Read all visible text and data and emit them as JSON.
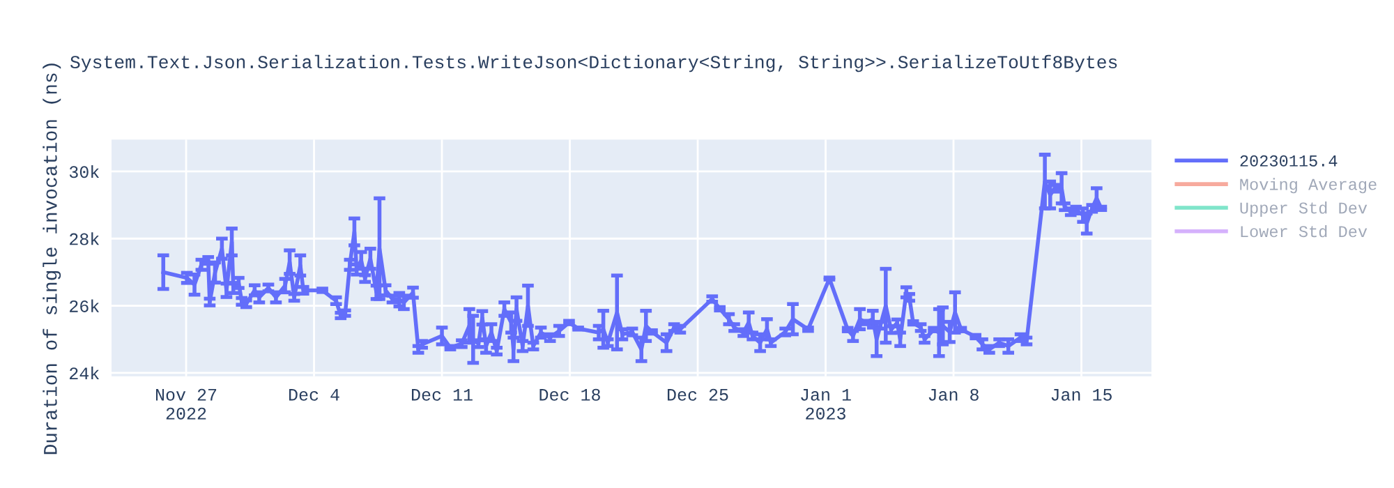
{
  "chart_data": {
    "type": "line",
    "title": "System.Text.Json.Serialization.Tests.WriteJson<Dictionary<String, String>>.SerializeToUtf8Bytes",
    "ylabel": "Duration of single invocation (ns)",
    "x": [
      "2022-11-25T18:00",
      "2022-11-27T01:00",
      "2022-11-27T11:00",
      "2022-11-27T20:00",
      "2022-11-28T05:00",
      "2022-11-28T07:00",
      "2022-11-28T14:00",
      "2022-11-28T23:00",
      "2022-11-29T05:00",
      "2022-11-29T12:00",
      "2022-11-29T14:00",
      "2022-11-29T21:00",
      "2022-11-30T01:00",
      "2022-11-30T07:00",
      "2022-11-30T18:00",
      "2022-12-01T00:00",
      "2022-12-01T12:00",
      "2022-12-01T22:00",
      "2022-12-02T10:00",
      "2022-12-02T16:00",
      "2022-12-02T22:00",
      "2022-12-03T06:00",
      "2022-12-03T10:00",
      "2022-12-04T11:00",
      "2022-12-05T05:00",
      "2022-12-05T11:00",
      "2022-12-05T17:00",
      "2022-12-05T23:00",
      "2022-12-06T05:00",
      "2022-12-06T08:00",
      "2022-12-06T14:00",
      "2022-12-06T19:00",
      "2022-12-07T02:00",
      "2022-12-07T10:00",
      "2022-12-07T14:00",
      "2022-12-07T22:00",
      "2022-12-08T07:00",
      "2022-12-08T16:00",
      "2022-12-08T22:00",
      "2022-12-09T10:00",
      "2022-12-09T17:00",
      "2022-12-09T22:00",
      "2022-12-11T00:00",
      "2022-12-11T11:00",
      "2022-12-12T02:00",
      "2022-12-12T12:00",
      "2022-12-12T17:00",
      "2022-12-13T00:00",
      "2022-12-13T05:00",
      "2022-12-13T10:00",
      "2022-12-13T17:00",
      "2022-12-14T00:00",
      "2022-12-14T10:00",
      "2022-12-14T19:00",
      "2022-12-14T22:00",
      "2022-12-15T02:00",
      "2022-12-15T10:00",
      "2022-12-15T17:00",
      "2022-12-16T00:00",
      "2022-12-16T10:00",
      "2022-12-16T22:00",
      "2022-12-17T10:00",
      "2022-12-17T23:00",
      "2022-12-18T11:00",
      "2022-12-19T14:00",
      "2022-12-19T20:00",
      "2022-12-20T02:00",
      "2022-12-20T14:00",
      "2022-12-20T21:00",
      "2022-12-21T10:00",
      "2022-12-21T22:00",
      "2022-12-22T04:00",
      "2022-12-22T12:00",
      "2022-12-23T07:00",
      "2022-12-23T17:00",
      "2022-12-24T01:00",
      "2022-12-25T19:00",
      "2022-12-26T05:00",
      "2022-12-26T17:00",
      "2022-12-27T00:00",
      "2022-12-27T12:00",
      "2022-12-27T19:00",
      "2022-12-28T00:00",
      "2022-12-28T10:00",
      "2022-12-28T19:00",
      "2022-12-29T00:00",
      "2022-12-29T19:00",
      "2022-12-30T05:00",
      "2022-12-31T01:00",
      "2023-01-01T05:00",
      "2023-01-02T05:00",
      "2023-01-02T12:00",
      "2023-01-02T21:00",
      "2023-01-03T05:00",
      "2023-01-03T14:00",
      "2023-01-03T19:00",
      "2023-01-04T00:00",
      "2023-01-04T07:00",
      "2023-01-04T14:00",
      "2023-01-04T22:00",
      "2023-01-05T02:00",
      "2023-01-05T10:00",
      "2023-01-05T14:00",
      "2023-01-05T19:00",
      "2023-01-06T05:00",
      "2023-01-06T10:00",
      "2023-01-06T22:00",
      "2023-01-07T05:00",
      "2023-01-07T10:00",
      "2023-01-07T19:00",
      "2023-01-08T02:00",
      "2023-01-08T10:00",
      "2023-01-09T05:00",
      "2023-01-09T14:00",
      "2023-01-09T23:00",
      "2023-01-10T12:00",
      "2023-01-11T00:00",
      "2023-01-11T16:00",
      "2023-01-12T00:00",
      "2023-01-13T00:00",
      "2023-01-13T07:00",
      "2023-01-13T13:00",
      "2023-01-13T22:00",
      "2023-01-14T02:00",
      "2023-01-14T10:00",
      "2023-01-14T17:00",
      "2023-01-15T02:00",
      "2023-01-15T07:00",
      "2023-01-15T14:00",
      "2023-01-15T20:00",
      "2023-01-16T02:00"
    ],
    "series": [
      {
        "name": "20230115.4",
        "color": "#636efa",
        "values": [
          27000,
          26830,
          26630,
          27220,
          27350,
          26110,
          26990,
          27700,
          26460,
          27900,
          26530,
          26680,
          26130,
          26060,
          26460,
          26250,
          26530,
          26250,
          26600,
          27300,
          26250,
          27200,
          26460,
          26460,
          26150,
          25710,
          25780,
          27220,
          28200,
          27080,
          27350,
          26810,
          27400,
          26400,
          27700,
          26460,
          26200,
          26180,
          26100,
          26390,
          24700,
          24850,
          25100,
          24750,
          24870,
          25400,
          25000,
          24870,
          25640,
          24800,
          25200,
          24650,
          25900,
          25500,
          24700,
          25900,
          24800,
          26000,
          24800,
          25200,
          25050,
          25250,
          25500,
          25320,
          25200,
          25300,
          24900,
          25800,
          25150,
          25220,
          24700,
          25400,
          25220,
          24900,
          25350,
          25300,
          26200,
          25910,
          25600,
          25350,
          25200,
          25500,
          25100,
          24900,
          25300,
          24900,
          25220,
          25600,
          25300,
          26810,
          25290,
          25100,
          25600,
          25500,
          25600,
          25000,
          25420,
          26000,
          25290,
          25490,
          25000,
          26400,
          26250,
          25490,
          25350,
          25000,
          25290,
          25200,
          25400,
          25220,
          25800,
          25290,
          25080,
          24850,
          24700,
          24900,
          24800,
          25050,
          24950,
          29700,
          29300,
          29500,
          29500,
          28950,
          28800,
          28850,
          28700,
          28450,
          28900,
          29200,
          28900
        ],
        "errors": [
          500,
          150,
          300,
          150,
          100,
          100,
          300,
          300,
          200,
          400,
          150,
          150,
          100,
          100,
          150,
          150,
          100,
          150,
          200,
          350,
          100,
          300,
          100,
          50,
          100,
          80,
          80,
          150,
          400,
          150,
          250,
          100,
          300,
          200,
          1500,
          150,
          100,
          200,
          200,
          150,
          100,
          100,
          250,
          50,
          100,
          500,
          700,
          100,
          200,
          200,
          250,
          100,
          200,
          300,
          350,
          350,
          150,
          600,
          100,
          150,
          100,
          150,
          50,
          30,
          200,
          550,
          100,
          1100,
          150,
          100,
          350,
          450,
          50,
          250,
          100,
          100,
          80,
          50,
          150,
          100,
          100,
          300,
          100,
          250,
          300,
          100,
          100,
          450,
          50,
          30,
          50,
          150,
          300,
          50,
          250,
          500,
          100,
          1100,
          100,
          100,
          200,
          150,
          100,
          50,
          100,
          100,
          50,
          700,
          550,
          300,
          600,
          50,
          50,
          150,
          100,
          100,
          200,
          100,
          100,
          800,
          400,
          100,
          450,
          100,
          100,
          100,
          200,
          300,
          100,
          300,
          50
        ]
      },
      {
        "name": "Moving Average",
        "color": "#ef553b",
        "values": [
          null,
          null,
          null,
          null,
          null,
          null,
          null,
          null,
          null,
          null,
          null,
          null,
          null,
          null,
          null,
          null,
          null,
          null,
          null,
          null,
          null,
          null,
          null,
          null,
          null,
          null,
          null,
          null,
          null,
          null,
          null,
          null,
          null,
          null,
          null,
          null,
          null,
          null,
          null,
          null,
          null,
          null,
          null,
          null,
          null,
          null,
          null,
          null,
          null,
          null,
          null,
          null,
          null,
          null,
          null,
          null,
          null,
          null,
          null,
          null,
          null,
          null,
          null,
          null,
          null,
          null,
          null,
          null,
          null,
          null,
          null,
          null,
          null,
          null,
          null,
          null,
          null,
          null,
          null,
          null,
          null,
          null,
          null,
          null,
          null,
          null,
          null,
          null,
          null,
          null,
          null,
          null,
          null,
          null,
          null,
          null,
          null,
          null,
          null,
          null,
          null,
          null,
          null,
          null,
          null,
          null,
          null,
          null,
          null,
          null,
          null,
          null,
          null,
          null,
          null,
          null,
          null,
          null,
          null,
          null,
          null,
          null,
          null,
          null,
          null,
          null,
          null,
          null,
          null,
          null,
          null
        ]
      },
      {
        "name": "Upper Std Dev",
        "color": "#00cc96",
        "values": [
          null,
          null,
          null,
          null,
          null,
          null,
          null,
          null,
          null,
          null,
          null,
          null,
          null,
          null,
          null,
          null,
          null,
          null,
          null,
          null,
          null,
          null,
          null,
          null,
          null,
          null,
          null,
          null,
          null,
          null,
          null,
          null,
          null,
          null,
          null,
          null,
          null,
          null,
          null,
          null,
          null,
          null,
          null,
          null,
          null,
          null,
          null,
          null,
          null,
          null,
          null,
          null,
          null,
          null,
          null,
          null,
          null,
          null,
          null,
          null,
          null,
          null,
          null,
          null,
          null,
          null,
          null,
          null,
          null,
          null,
          null,
          null,
          null,
          null,
          null,
          null,
          null,
          null,
          null,
          null,
          null,
          null,
          null,
          null,
          null,
          null,
          null,
          null,
          null,
          null,
          null,
          null,
          null,
          null,
          null,
          null,
          null,
          null,
          null,
          null,
          null,
          null,
          null,
          null,
          null,
          null,
          null,
          null,
          null,
          null,
          null,
          null,
          null,
          null,
          null,
          null,
          null,
          null,
          null,
          null,
          null,
          null,
          null,
          null,
          null,
          null,
          null,
          null,
          null,
          null,
          null
        ]
      },
      {
        "name": "Lower Std Dev",
        "color": "#ab63fa",
        "values": [
          null,
          null,
          null,
          null,
          null,
          null,
          null,
          null,
          null,
          null,
          null,
          null,
          null,
          null,
          null,
          null,
          null,
          null,
          null,
          null,
          null,
          null,
          null,
          null,
          null,
          null,
          null,
          null,
          null,
          null,
          null,
          null,
          null,
          null,
          null,
          null,
          null,
          null,
          null,
          null,
          null,
          null,
          null,
          null,
          null,
          null,
          null,
          null,
          null,
          null,
          null,
          null,
          null,
          null,
          null,
          null,
          null,
          null,
          null,
          null,
          null,
          null,
          null,
          null,
          null,
          null,
          null,
          null,
          null,
          null,
          null,
          null,
          null,
          null,
          null,
          null,
          null,
          null,
          null,
          null,
          null,
          null,
          null,
          null,
          null,
          null,
          null,
          null,
          null,
          null,
          null,
          null,
          null,
          null,
          null,
          null,
          null,
          null,
          null,
          null,
          null,
          null,
          null,
          null,
          null,
          null,
          null,
          null,
          null,
          null,
          null,
          null,
          null,
          null,
          null,
          null,
          null,
          null,
          null,
          null,
          null,
          null,
          null,
          null,
          null,
          null,
          null,
          null,
          null,
          null,
          null
        ]
      }
    ],
    "xlim": [
      "2022-11-22T22:00",
      "2023-01-18T20:00"
    ],
    "xticks": [
      {
        "value": "2022-11-27",
        "label": "Nov 27\n2022"
      },
      {
        "value": "2022-12-04",
        "label": "Dec 4"
      },
      {
        "value": "2022-12-11",
        "label": "Dec 11"
      },
      {
        "value": "2022-12-18",
        "label": "Dec 18"
      },
      {
        "value": "2022-12-25",
        "label": "Dec 25"
      },
      {
        "value": "2023-01-01",
        "label": "Jan 1\n2023"
      },
      {
        "value": "2023-01-08",
        "label": "Jan 8"
      },
      {
        "value": "2023-01-15",
        "label": "Jan 15"
      }
    ],
    "ylim": [
      23900,
      30950
    ],
    "yticks": [
      {
        "value": 24000,
        "label": "24k"
      },
      {
        "value": 26000,
        "label": "26k"
      },
      {
        "value": 28000,
        "label": "28k"
      },
      {
        "value": 30000,
        "label": "30k"
      }
    ],
    "grid": true,
    "legend": "right",
    "marker": "none",
    "line_style": "solid"
  }
}
